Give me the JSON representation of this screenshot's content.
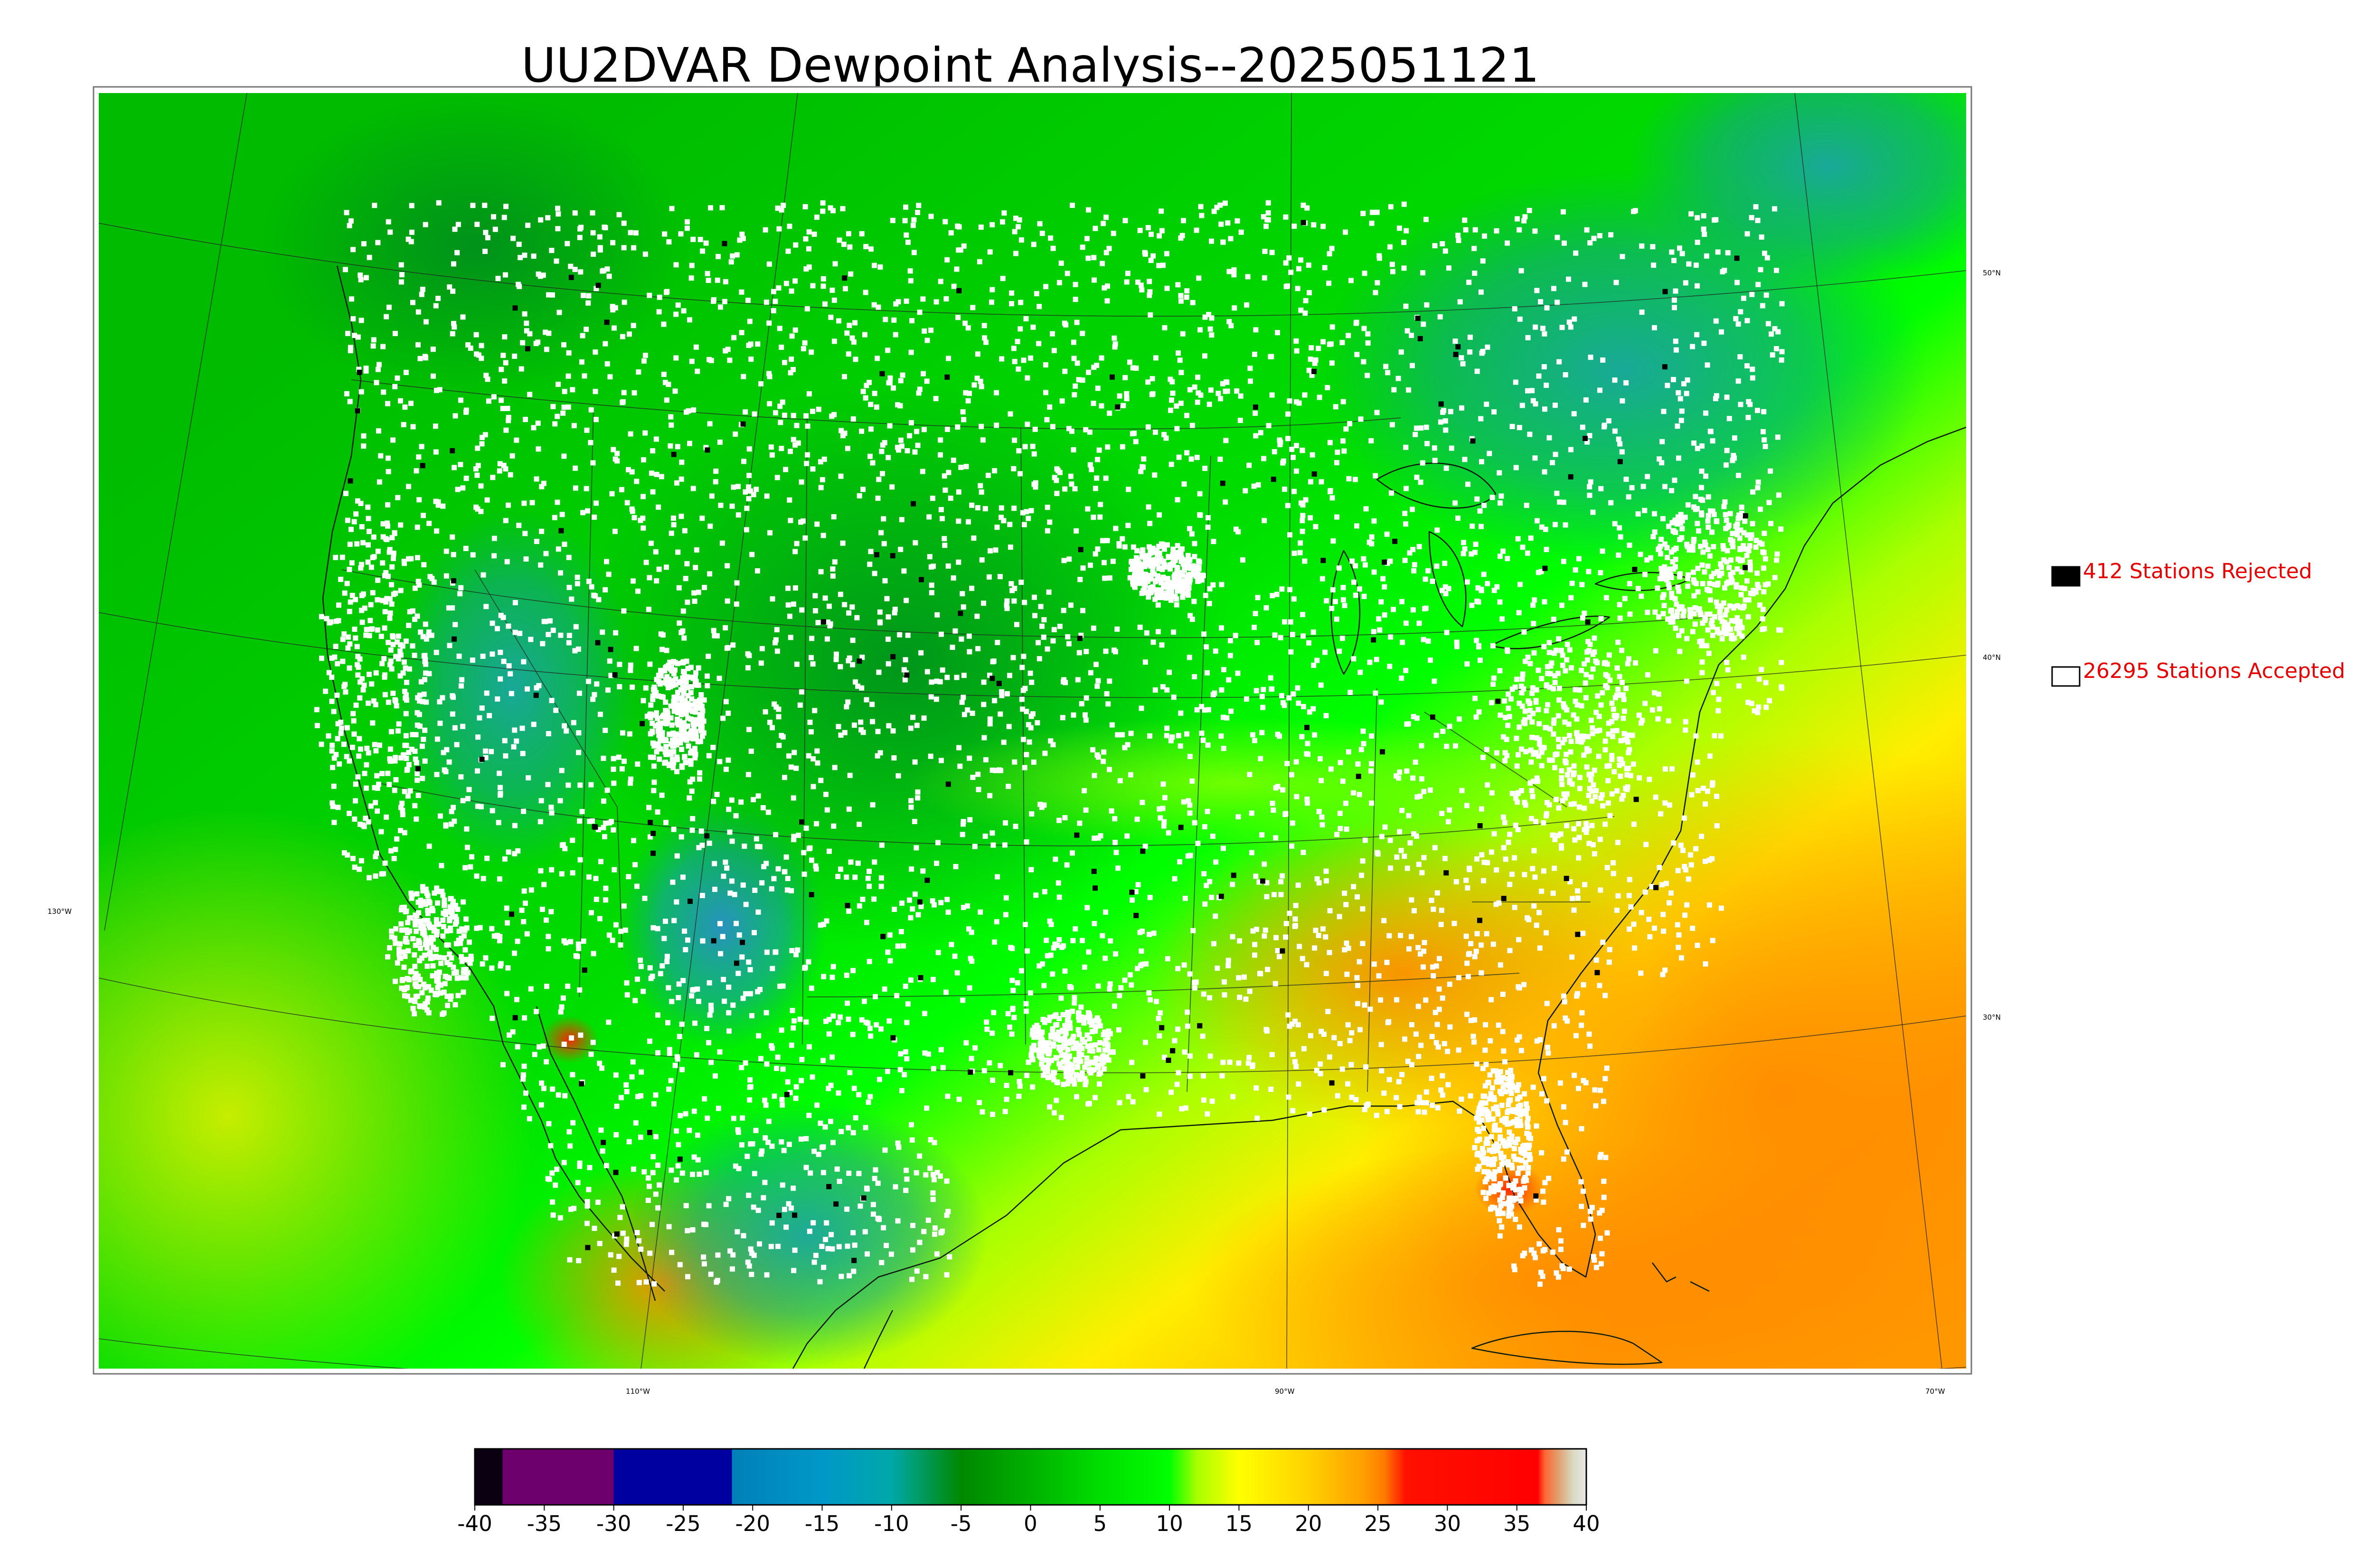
{
  "title": "UU2DVAR Dewpoint Analysis--2025051121",
  "map": {
    "latitude_labels": [
      "50°N",
      "40°N",
      "30°N"
    ],
    "longitude_labels": [
      "130°W",
      "110°W",
      "90°W",
      "70°W"
    ]
  },
  "legend": {
    "rejected": {
      "label": "412 Stations Rejected",
      "swatch_color": "#000000"
    },
    "accepted": {
      "label": "26295 Stations Accepted",
      "swatch_color": "#ffffff"
    },
    "text_color": "#e60000"
  },
  "colorbar": {
    "ticks": [
      "-40",
      "-35",
      "-30",
      "-25",
      "-20",
      "-15",
      "-10",
      "-5",
      "0",
      "5",
      "10",
      "15",
      "20",
      "25",
      "30",
      "35",
      "40"
    ],
    "range": [
      -40,
      40
    ],
    "stops": [
      {
        "value": -40,
        "color": "#0a0012"
      },
      {
        "value": -38,
        "color": "#0a0012"
      },
      {
        "value": -38,
        "color": "#6e006e"
      },
      {
        "value": -30,
        "color": "#6e006e"
      },
      {
        "value": -30,
        "color": "#0000a0"
      },
      {
        "value": -21.5,
        "color": "#0000a0"
      },
      {
        "value": -21.5,
        "color": "#0080b8"
      },
      {
        "value": -15,
        "color": "#0098c8"
      },
      {
        "value": -10,
        "color": "#00a8a8"
      },
      {
        "value": -5,
        "color": "#008800"
      },
      {
        "value": 0,
        "color": "#00b000"
      },
      {
        "value": 5,
        "color": "#00dd00"
      },
      {
        "value": 10,
        "color": "#00ff00"
      },
      {
        "value": 12,
        "color": "#aaff00"
      },
      {
        "value": 15,
        "color": "#ffff00"
      },
      {
        "value": 20,
        "color": "#ffd200"
      },
      {
        "value": 24,
        "color": "#ff9e00"
      },
      {
        "value": 25.5,
        "color": "#ff7a00"
      },
      {
        "value": 26,
        "color": "#ff5500"
      },
      {
        "value": 27,
        "color": "#ff1000"
      },
      {
        "value": 36.5,
        "color": "#ff0000"
      },
      {
        "value": 37,
        "color": "#ff6633"
      },
      {
        "value": 38,
        "color": "#e0a070"
      },
      {
        "value": 39,
        "color": "#d8d8c0"
      },
      {
        "value": 40,
        "color": "#e8e8e8"
      }
    ]
  }
}
